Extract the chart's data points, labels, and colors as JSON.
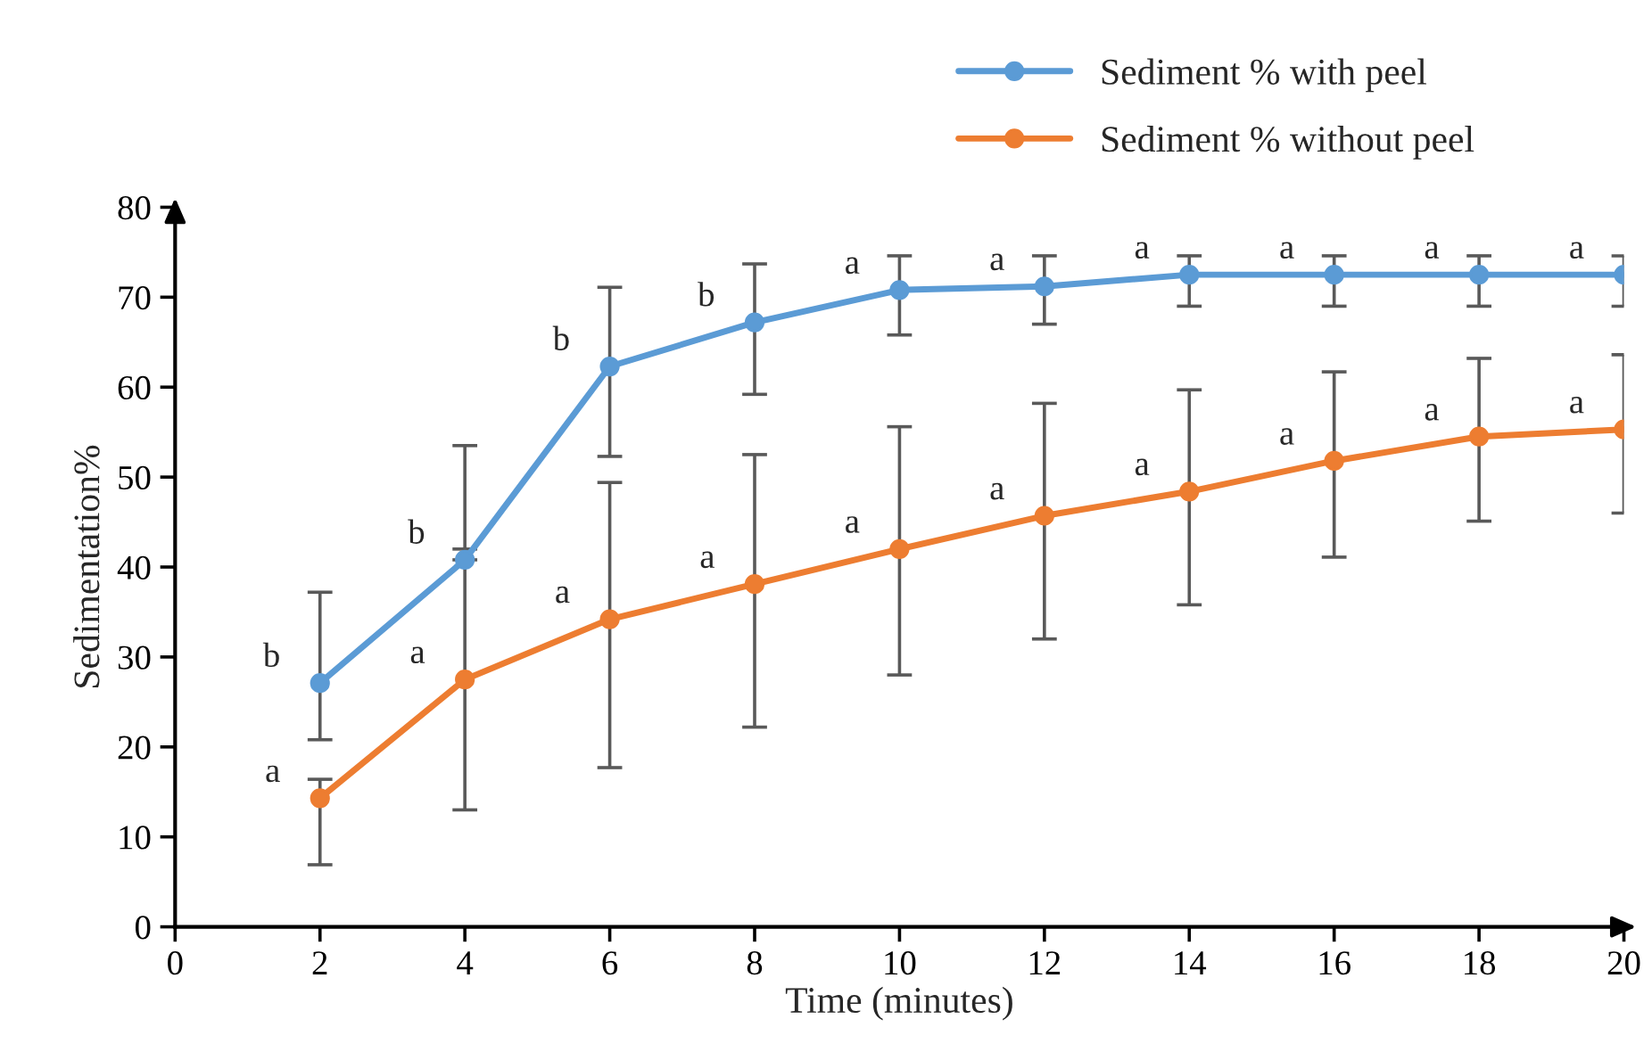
{
  "chart_data": {
    "type": "line",
    "xlabel": "Time (minutes)",
    "ylabel": "Sedimentation%",
    "x": [
      2,
      4,
      6,
      8,
      10,
      12,
      14,
      16,
      18,
      20
    ],
    "series": [
      {
        "name": "Sediment % with peel",
        "color": "#5b9bd5",
        "values": [
          27.1,
          40.8,
          62.3,
          67.2,
          70.8,
          71.2,
          72.5,
          72.5,
          72.5,
          72.5
        ],
        "errors": [
          [
            20.8,
            37.2
          ],
          [
            40.8,
            53.5
          ],
          [
            52.3,
            71.1
          ],
          [
            59.2,
            73.7
          ],
          [
            65.8,
            74.6
          ],
          [
            67,
            74.6
          ],
          [
            69,
            74.6
          ],
          [
            69,
            74.6
          ],
          [
            69,
            74.6
          ],
          [
            69,
            74.6
          ]
        ]
      },
      {
        "name": "Sediment % without peel",
        "color": "#ed7d31",
        "values": [
          14.3,
          27.5,
          34.2,
          38.1,
          42,
          45.7,
          48.4,
          51.8,
          54.5,
          55.3
        ],
        "errors": [
          [
            6.9,
            16.4
          ],
          [
            13,
            42
          ],
          [
            17.7,
            49.4
          ],
          [
            22.2,
            52.5
          ],
          [
            28,
            55.6
          ],
          [
            32,
            58.2
          ],
          [
            35.8,
            59.7
          ],
          [
            41.1,
            61.7
          ],
          [
            45.1,
            63.2
          ],
          [
            46,
            63.6
          ]
        ]
      }
    ],
    "annotations": [
      {
        "text": "b",
        "x": 2,
        "y": 27.1
      },
      {
        "text": "b",
        "x": 4,
        "y": 40.8
      },
      {
        "text": "b",
        "x": 6,
        "y": 62.3
      },
      {
        "text": "b",
        "x": 8,
        "y": 67.2
      },
      {
        "text": "a",
        "x": 10,
        "y": 70.8
      },
      {
        "text": "a",
        "x": 12,
        "y": 71.2
      },
      {
        "text": "a",
        "x": 14,
        "y": 72.5
      },
      {
        "text": "a",
        "x": 16,
        "y": 72.5
      },
      {
        "text": "a",
        "x": 18,
        "y": 72.5
      },
      {
        "text": "a",
        "x": 20,
        "y": 72.5
      },
      {
        "text": "a",
        "x": 2,
        "y": 14.3
      },
      {
        "text": "a",
        "x": 4,
        "y": 27.5
      },
      {
        "text": "a",
        "x": 6,
        "y": 34.2
      },
      {
        "text": "a",
        "x": 8,
        "y": 38.1
      },
      {
        "text": "a",
        "x": 10,
        "y": 42
      },
      {
        "text": "a",
        "x": 12,
        "y": 45.7
      },
      {
        "text": "a",
        "x": 14,
        "y": 48.4
      },
      {
        "text": "a",
        "x": 16,
        "y": 51.8
      },
      {
        "text": "a",
        "x": 18,
        "y": 54.5
      },
      {
        "text": "a",
        "x": 20,
        "y": 55.3
      }
    ],
    "xlim": [
      0,
      20
    ],
    "xticks": [
      0,
      2,
      4,
      6,
      8,
      10,
      12,
      14,
      16,
      18,
      20
    ],
    "ylim": [
      0,
      80
    ],
    "yticks": [
      0,
      10,
      20,
      30,
      40,
      50,
      60,
      70,
      80
    ],
    "grid": false,
    "legend": "top right",
    "marker": "circle",
    "line_style": "solid"
  }
}
